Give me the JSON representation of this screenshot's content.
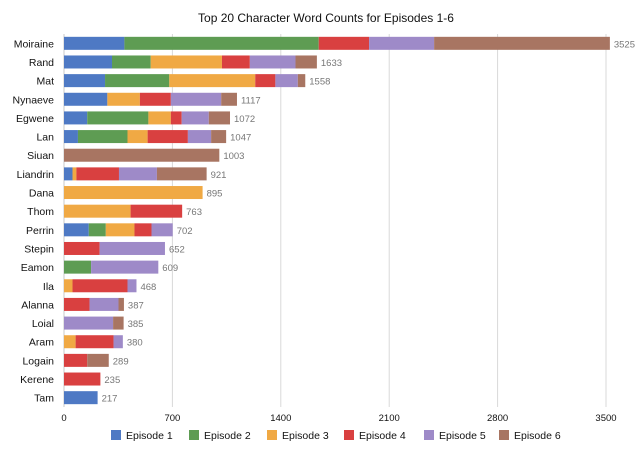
{
  "chart_data": {
    "type": "bar",
    "orientation": "horizontal",
    "stacked": true,
    "title": "Top 20 Character Word Counts for Episodes 1-6",
    "xlabel": "",
    "ylabel": "",
    "xlim": [
      0,
      3500
    ],
    "xticks": [
      0,
      700,
      1400,
      2100,
      2800,
      3500
    ],
    "grid": true,
    "legend_position": "bottom",
    "categories": [
      "Moiraine",
      "Rand",
      "Mat",
      "Nynaeve",
      "Egwene",
      "Lan",
      "Siuan",
      "Liandrin",
      "Dana",
      "Thom",
      "Perrin",
      "Stepin",
      "Eamon",
      "Ila",
      "Alanna",
      "Loial",
      "Aram",
      "Logain",
      "Kerene",
      "Tam"
    ],
    "totals": [
      3525,
      1633,
      1558,
      1117,
      1072,
      1047,
      1003,
      921,
      895,
      763,
      702,
      652,
      609,
      468,
      387,
      385,
      380,
      289,
      235,
      217
    ],
    "series": [
      {
        "name": "Episode 1",
        "color": "#4e79c4",
        "values": [
          390,
          310,
          265,
          280,
          150,
          90,
          0,
          55,
          0,
          0,
          160,
          0,
          0,
          0,
          0,
          0,
          0,
          0,
          0,
          217
        ]
      },
      {
        "name": "Episode 2",
        "color": "#5e9c53",
        "values": [
          1255,
          250,
          415,
          0,
          395,
          320,
          0,
          0,
          0,
          0,
          110,
          0,
          175,
          0,
          0,
          0,
          0,
          0,
          0,
          0
        ]
      },
      {
        "name": "Episode 3",
        "color": "#f0a944",
        "values": [
          0,
          460,
          555,
          210,
          145,
          130,
          0,
          25,
          895,
          430,
          185,
          0,
          0,
          55,
          0,
          0,
          75,
          0,
          0,
          0
        ]
      },
      {
        "name": "Episode 4",
        "color": "#d94040",
        "values": [
          325,
          180,
          130,
          200,
          70,
          260,
          0,
          275,
          0,
          333,
          110,
          230,
          0,
          355,
          165,
          0,
          245,
          150,
          235,
          0
        ]
      },
      {
        "name": "Episode 5",
        "color": "#9e8ac8",
        "values": [
          420,
          295,
          145,
          325,
          175,
          150,
          0,
          245,
          0,
          0,
          137,
          422,
          434,
          58,
          187,
          317,
          60,
          0,
          0,
          0
        ]
      },
      {
        "name": "Episode 6",
        "color": "#a87562",
        "values": [
          1135,
          138,
          48,
          102,
          137,
          97,
          1003,
          321,
          0,
          0,
          0,
          0,
          0,
          0,
          35,
          68,
          0,
          139,
          0,
          0
        ]
      }
    ]
  }
}
